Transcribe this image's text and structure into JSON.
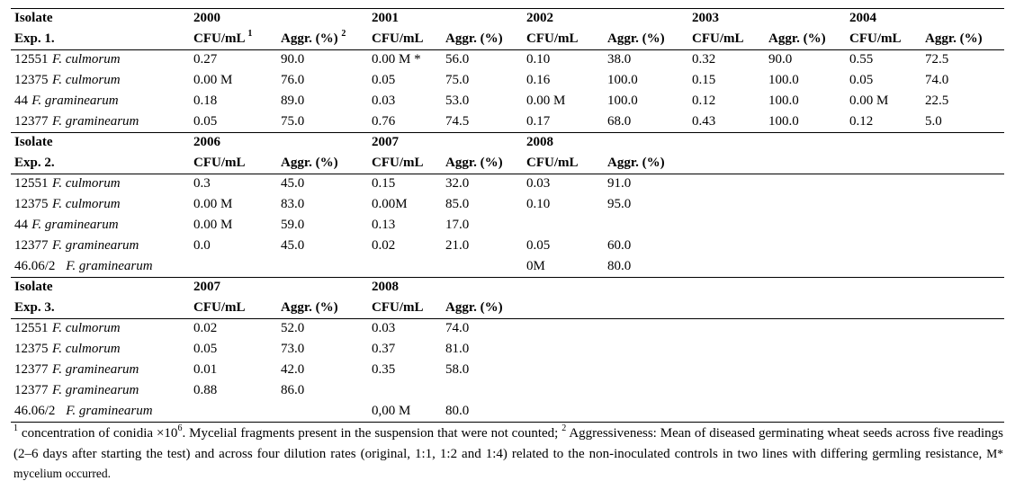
{
  "sections": [
    {
      "id": "exp1",
      "hdr1_isolate": "Isolate",
      "hdr2_exp": "Exp. 1.",
      "years": [
        "2000",
        "2001",
        "2002",
        "2003",
        "2004"
      ],
      "col_labels": [
        [
          "CFU/mL",
          "1",
          "Aggr. (%)",
          "2"
        ],
        [
          "CFU/mL",
          "",
          "Aggr. (%)",
          ""
        ],
        [
          "CFU/mL",
          "",
          "Aggr. (%)",
          ""
        ],
        [
          "CFU/mL",
          "",
          "Aggr. (%)",
          ""
        ],
        [
          "CFU/mL",
          "",
          "Aggr. (%)",
          ""
        ]
      ],
      "rows": [
        {
          "code": "12551",
          "species": "F. culmorum",
          "cells": [
            "0.27",
            "90.0",
            "0.00 M *",
            "56.0",
            "0.10",
            "38.0",
            "0.32",
            "90.0",
            "0.55",
            "72.5"
          ]
        },
        {
          "code": "12375",
          "species": "F. culmorum",
          "cells": [
            "0.00 M",
            "76.0",
            "0.05",
            "75.0",
            "0.16",
            "100.0",
            "0.15",
            "100.0",
            "0.05",
            "74.0"
          ]
        },
        {
          "code": "44",
          "species": "F. graminearum",
          "cells": [
            "0.18",
            "89.0",
            "0.03",
            "53.0",
            "0.00 M",
            "100.0",
            "0.12",
            "100.0",
            "0.00 M",
            "22.5"
          ]
        },
        {
          "code": "12377",
          "species": "F. graminearum",
          "cells": [
            "0.05",
            "75.0",
            "0.76",
            "74.5",
            "0.17",
            "68.0",
            "0.43",
            "100.0",
            "0.12",
            "5.0"
          ]
        }
      ]
    },
    {
      "id": "exp2",
      "hdr1_isolate": "Isolate",
      "hdr2_exp": "Exp. 2.",
      "years": [
        "2006",
        "2007",
        "2008"
      ],
      "col_labels": [
        [
          "CFU/mL",
          "",
          "Aggr. (%)",
          ""
        ],
        [
          "CFU/mL",
          "",
          "Aggr. (%)",
          ""
        ],
        [
          "CFU/mL",
          "",
          "Aggr. (%)",
          ""
        ]
      ],
      "rows": [
        {
          "code": "12551",
          "species": "F. culmorum",
          "cells": [
            "0.3",
            "45.0",
            "0.15",
            "32.0",
            "0.03",
            "91.0"
          ]
        },
        {
          "code": "12375",
          "species": "F. culmorum",
          "cells": [
            "0.00 M",
            "83.0",
            "0.00M",
            "85.0",
            "0.10",
            "95.0"
          ]
        },
        {
          "code": "44",
          "species": "F. graminearum",
          "cells": [
            "0.00 M",
            "59.0",
            "0.13",
            "17.0",
            "",
            ""
          ]
        },
        {
          "code": "12377",
          "species": "F. graminearum",
          "cells": [
            "0.0",
            "45.0",
            "0.02",
            "21.0",
            "0.05",
            "60.0"
          ]
        },
        {
          "code": "46.06/2",
          "species": "F. graminearum",
          "cells": [
            "",
            "",
            "",
            "",
            "0M",
            "80.0"
          ]
        }
      ]
    },
    {
      "id": "exp3",
      "hdr1_isolate": "Isolate",
      "hdr2_exp": "Exp. 3.",
      "years": [
        "2007",
        "2008"
      ],
      "col_labels": [
        [
          "CFU/mL",
          "",
          "Aggr. (%)",
          ""
        ],
        [
          "CFU/mL",
          "",
          "Aggr. (%)",
          ""
        ]
      ],
      "rows": [
        {
          "code": "12551",
          "species": "F. culmorum",
          "cells": [
            "0.02",
            "52.0",
            "0.03",
            "74.0"
          ]
        },
        {
          "code": "12375",
          "species": "F. culmorum",
          "cells": [
            "0.05",
            "73.0",
            "0.37",
            "81.0"
          ]
        },
        {
          "code": "12377",
          "species": "F. graminearum",
          "cells": [
            "0.01",
            "42.0",
            "0.35",
            "58.0"
          ]
        },
        {
          "code": "12377",
          "species": "F. graminearum",
          "cells": [
            "0.88",
            "86.0",
            "",
            ""
          ]
        },
        {
          "code": "46.06/2",
          "species": "F. graminearum",
          "cells": [
            "",
            "",
            "0,00 M",
            "80.0"
          ]
        }
      ]
    }
  ],
  "footnote": {
    "sup1": "1",
    "part1": " concentration of conidia ×10",
    "exp6": "6",
    "part2": ". Mycelial fragments present in the suspension that were not counted; ",
    "sup2": "2",
    "part3": " Aggressiveness: Mean of diseased germinating wheat seeds across five readings (2–6 days after starting the test) and across four dilution rates (original, 1:1, 1:2 and 1:4) related to the non-inoculated controls in two lines with differing germling resistance, ",
    "part4": "M* mycelium occurred."
  }
}
